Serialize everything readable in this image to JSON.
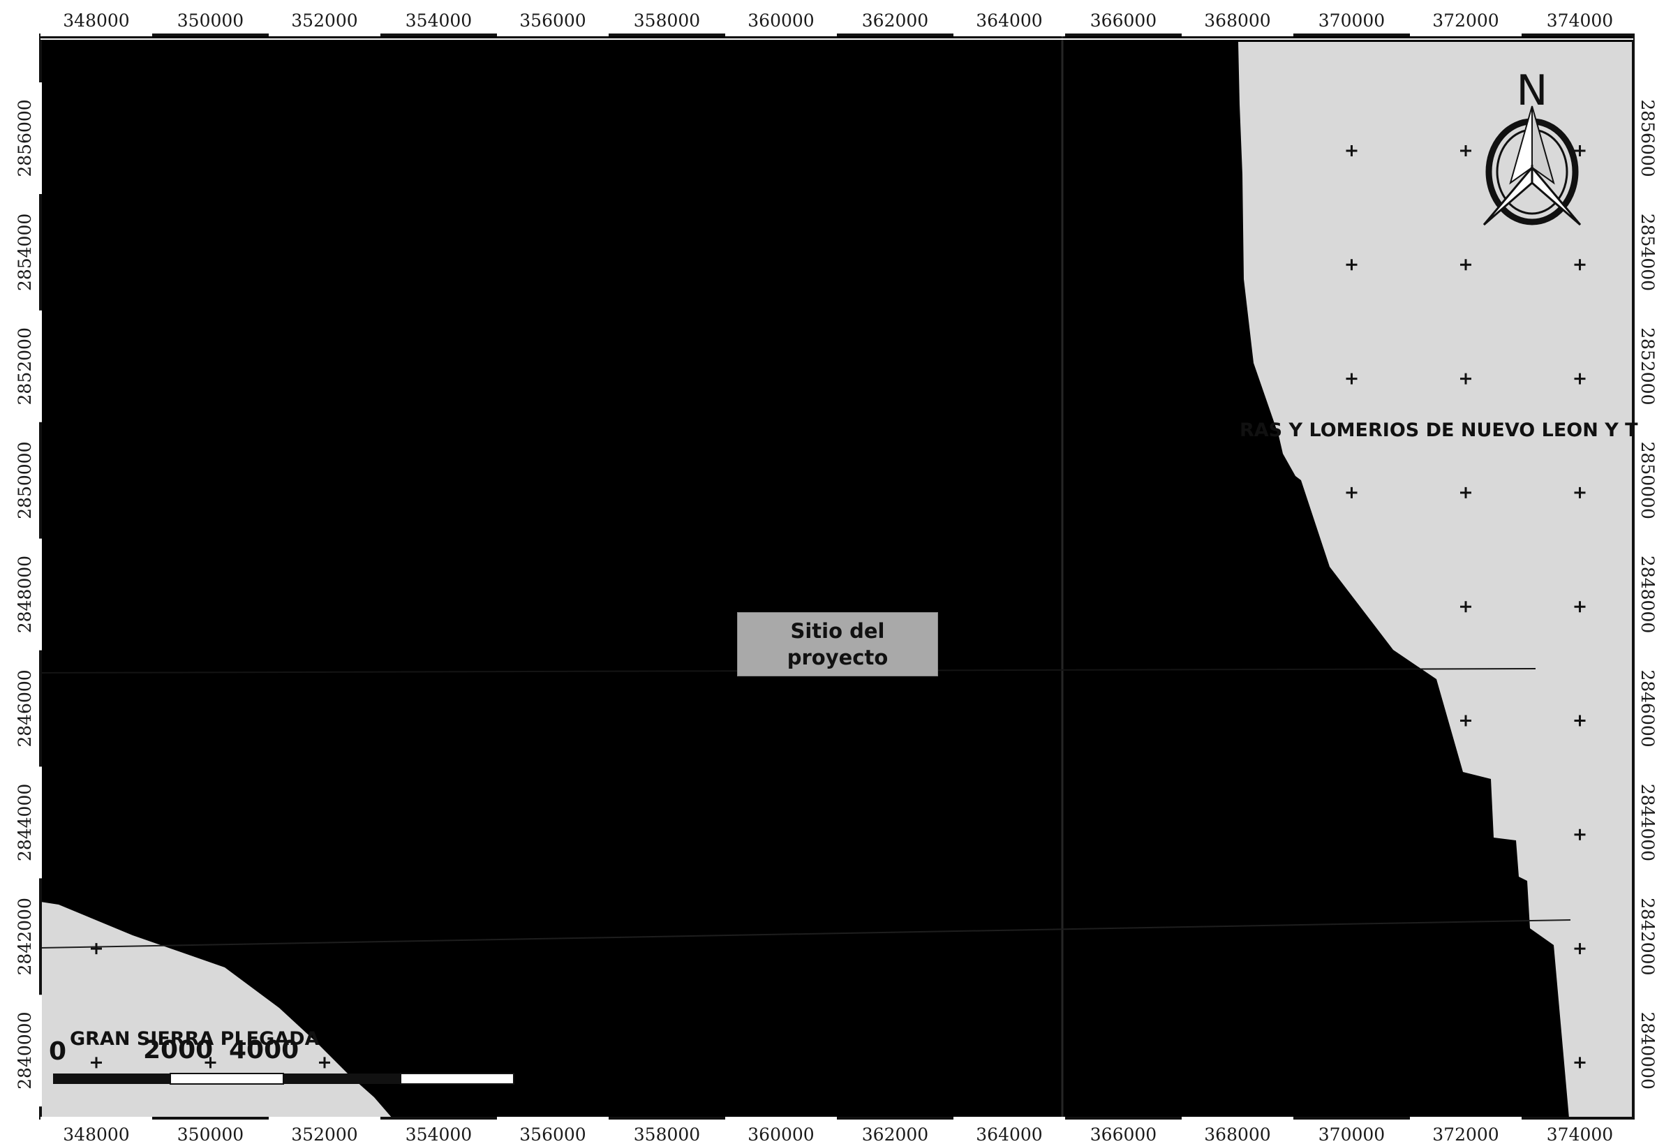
{
  "map": {
    "colors": {
      "background_unit": "#000000",
      "sierras_unit": "#d9d9d9",
      "frame": "#111111",
      "site_box": "#a9a9a9"
    },
    "x_ticks": [
      "348000",
      "350000",
      "352000",
      "354000",
      "356000",
      "358000",
      "360000",
      "362000",
      "364000",
      "366000",
      "368000",
      "370000",
      "372000",
      "374000"
    ],
    "y_ticks": [
      "2856000",
      "2854000",
      "2852000",
      "2850000",
      "2848000",
      "2846000",
      "2844000",
      "2842000",
      "2840000"
    ],
    "unit_labels": {
      "sierras": "RAS Y LOMERIOS DE NUEVO LEON Y T",
      "gran_sierra": "GRAN SIERRA PLEGADA"
    },
    "site_label": "Sitio del\nproyecto",
    "north_arrow": {
      "icon": "north-arrow-icon",
      "label": "N"
    },
    "scale_bar": {
      "labels": [
        "0",
        "2000",
        "4000"
      ]
    },
    "grid_marker_icon": "plus-icon"
  }
}
